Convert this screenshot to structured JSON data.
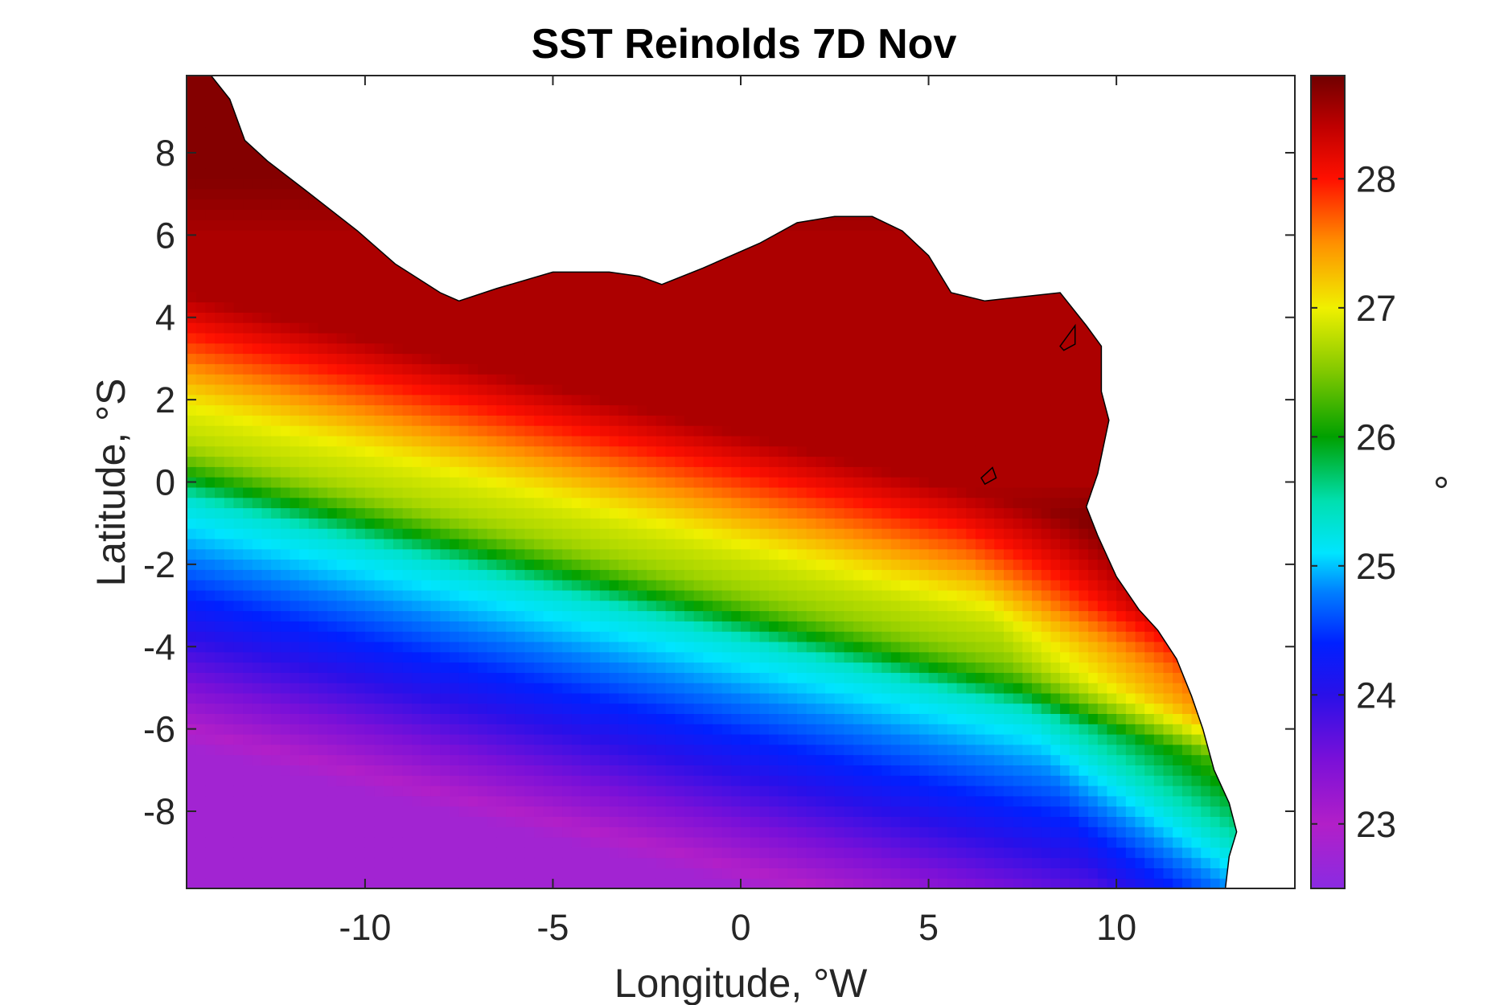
{
  "chart_data": {
    "type": "heatmap",
    "title": "SST Reinolds 7D Nov",
    "xlabel": "Longitude, °W",
    "ylabel": "Latitude, °S",
    "xlim": [
      -14.75,
      14.75
    ],
    "ylim": [
      -9.875,
      9.875
    ],
    "x_ticks": [
      -10,
      -5,
      0,
      5,
      10
    ],
    "x_tick_labels": [
      "-10",
      "-5",
      "0",
      "5",
      "10"
    ],
    "y_ticks": [
      -8,
      -6,
      -4,
      -2,
      0,
      2,
      4,
      6,
      8
    ],
    "y_tick_labels": [
      "-8",
      "-6",
      "-4",
      "-2",
      "0",
      "2",
      "4",
      "6",
      "8"
    ],
    "colorbar": {
      "label": "°",
      "range": [
        22.5,
        28.8
      ],
      "ticks": [
        23,
        24,
        25,
        26,
        27,
        28
      ],
      "tick_labels": [
        "23",
        "24",
        "25",
        "26",
        "27",
        "28"
      ],
      "colormap": [
        {
          "value": 22.5,
          "color": "#8a2be2"
        },
        {
          "value": 23.0,
          "color": "#b21fc8"
        },
        {
          "value": 23.5,
          "color": "#7a10d8"
        },
        {
          "value": 24.0,
          "color": "#2a10e8"
        },
        {
          "value": 24.4,
          "color": "#0020ff"
        },
        {
          "value": 24.8,
          "color": "#0080ff"
        },
        {
          "value": 25.1,
          "color": "#00e5ff"
        },
        {
          "value": 25.5,
          "color": "#00e0b0"
        },
        {
          "value": 26.0,
          "color": "#00a000"
        },
        {
          "value": 26.5,
          "color": "#80c800"
        },
        {
          "value": 27.0,
          "color": "#f0f000"
        },
        {
          "value": 27.5,
          "color": "#ff9000"
        },
        {
          "value": 28.0,
          "color": "#ff1000"
        },
        {
          "value": 28.4,
          "color": "#c00000"
        },
        {
          "value": 28.8,
          "color": "#700000"
        }
      ]
    },
    "grid": false,
    "coastline": [
      [
        -14.1,
        9.875
      ],
      [
        -13.6,
        9.3
      ],
      [
        -13.2,
        8.3
      ],
      [
        -12.6,
        7.8
      ],
      [
        -11.6,
        7.1
      ],
      [
        -10.2,
        6.1
      ],
      [
        -9.2,
        5.3
      ],
      [
        -8.0,
        4.6
      ],
      [
        -7.5,
        4.4
      ],
      [
        -6.5,
        4.7
      ],
      [
        -5.0,
        5.1
      ],
      [
        -3.5,
        5.1
      ],
      [
        -2.7,
        5.0
      ],
      [
        -2.1,
        4.8
      ],
      [
        -1.0,
        5.2
      ],
      [
        0.5,
        5.8
      ],
      [
        1.5,
        6.3
      ],
      [
        2.5,
        6.45
      ],
      [
        3.5,
        6.45
      ],
      [
        4.3,
        6.1
      ],
      [
        5.0,
        5.5
      ],
      [
        5.6,
        4.6
      ],
      [
        6.5,
        4.4
      ],
      [
        7.5,
        4.5
      ],
      [
        8.5,
        4.6
      ],
      [
        9.2,
        3.8
      ],
      [
        9.6,
        3.3
      ],
      [
        9.6,
        2.2
      ],
      [
        9.8,
        1.5
      ],
      [
        9.5,
        0.2
      ],
      [
        9.2,
        -0.6
      ],
      [
        9.5,
        -1.3
      ],
      [
        10.0,
        -2.3
      ],
      [
        10.6,
        -3.1
      ],
      [
        11.1,
        -3.6
      ],
      [
        11.6,
        -4.3
      ],
      [
        12.0,
        -5.2
      ],
      [
        12.3,
        -6.0
      ],
      [
        12.6,
        -7.0
      ],
      [
        13.0,
        -7.8
      ],
      [
        13.2,
        -8.5
      ],
      [
        13.0,
        -9.1
      ],
      [
        12.9,
        -9.875
      ]
    ],
    "islands": [
      [
        [
          8.5,
          3.3
        ],
        [
          8.9,
          3.8
        ],
        [
          8.9,
          3.35
        ],
        [
          8.6,
          3.2
        ]
      ],
      [
        [
          6.4,
          0.1
        ],
        [
          6.7,
          0.35
        ],
        [
          6.8,
          0.1
        ],
        [
          6.5,
          -0.05
        ]
      ]
    ],
    "field_model": {
      "description": "Sea surface temperature field: 28.4 in the far north, warm band near Gulf of Guinea coast, equatorial cold tongue minimum along south-west",
      "pixel_step_deg": 0.25
    }
  }
}
